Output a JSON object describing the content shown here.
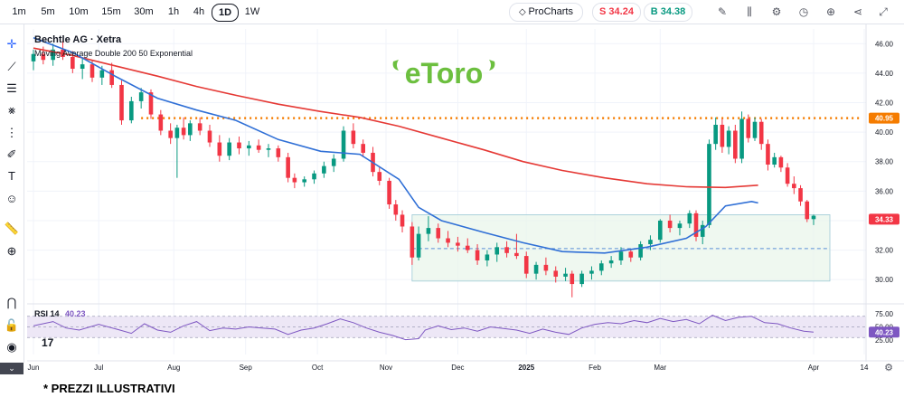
{
  "toolbar_top": {
    "timeframes": [
      "1m",
      "5m",
      "10m",
      "15m",
      "30m",
      "1h",
      "4h",
      "1D",
      "1W"
    ],
    "active_timeframe": "1D",
    "prochart_label": "ProCharts",
    "sell_label": "S 34.24",
    "buy_label": "B 34.38",
    "icons": [
      "pencil-icon",
      "bars-icon",
      "gear-icon",
      "history-icon",
      "plus-circle-icon",
      "share-icon",
      "expand-icon"
    ]
  },
  "left_tools": [
    "crosshair-icon",
    "trend-line-icon",
    "horizontal-lines-icon",
    "pattern-icon",
    "fib-icon",
    "brush-icon",
    "text-icon",
    "emoji-icon",
    "ruler-icon",
    "zoom-icon",
    "magnet-icon",
    "lock-icon",
    "eye-icon"
  ],
  "colors": {
    "up": "#089981",
    "down": "#f23645",
    "ema200": "#e53935",
    "ema50": "#2f6fd6",
    "resistance": "#f57c00",
    "box_fill": "#e8f5e9",
    "box_border": "#9cc9d6",
    "rsi_line": "#7e57c2",
    "rsi_band": "#ede7f6",
    "logo": "#6cbf3f"
  },
  "logo_text": "eToro",
  "footnote": "* PREZZI ILLUSTRATIVI",
  "chart_data": {
    "type": "candlestick",
    "title": "Bechtle AG · Xetra",
    "subtitle": "Moving Average Double 200 50 Exponential",
    "x_labels": [
      "Jun",
      "Jul",
      "Aug",
      "Sep",
      "Oct",
      "Nov",
      "Dec",
      "2025",
      "Feb",
      "Mar",
      "Apr",
      "14"
    ],
    "y_ticks": [
      30.0,
      32.0,
      34.0,
      36.0,
      38.0,
      40.0,
      42.0,
      44.0,
      46.0
    ],
    "y_range": [
      28.6,
      47.0
    ],
    "resistance_level": 40.95,
    "last_price_label": "34.33",
    "resistance_label": "40.95",
    "consolidation_box": {
      "start": "Oct 28",
      "end": "Apr 14",
      "top": 34.4,
      "mid": 32.1,
      "bottom": 29.9
    },
    "ema200": [
      [
        0,
        45.7
      ],
      [
        12,
        45.2
      ],
      [
        25,
        44.5
      ],
      [
        38,
        43.8
      ],
      [
        50,
        43.1
      ],
      [
        62,
        42.5
      ],
      [
        75,
        41.9
      ],
      [
        88,
        41.4
      ],
      [
        100,
        41.0
      ],
      [
        112,
        40.4
      ],
      [
        125,
        39.6
      ],
      [
        138,
        38.8
      ],
      [
        150,
        38.0
      ],
      [
        162,
        37.4
      ],
      [
        175,
        36.9
      ],
      [
        188,
        36.5
      ],
      [
        200,
        36.3
      ],
      [
        212,
        36.25
      ],
      [
        222,
        36.4
      ]
    ],
    "ema50": [
      [
        0,
        46.4
      ],
      [
        12,
        45.4
      ],
      [
        25,
        43.8
      ],
      [
        38,
        42.3
      ],
      [
        50,
        41.5
      ],
      [
        62,
        40.8
      ],
      [
        75,
        39.5
      ],
      [
        88,
        38.7
      ],
      [
        100,
        38.5
      ],
      [
        112,
        36.8
      ],
      [
        118,
        34.9
      ],
      [
        125,
        34.0
      ],
      [
        138,
        33.2
      ],
      [
        150,
        32.5
      ],
      [
        162,
        31.9
      ],
      [
        175,
        31.8
      ],
      [
        188,
        32.2
      ],
      [
        200,
        32.8
      ],
      [
        206,
        33.6
      ],
      [
        212,
        35.0
      ],
      [
        220,
        35.3
      ],
      [
        222,
        35.2
      ]
    ],
    "candles": [
      [
        0,
        44.8,
        45.6,
        44.2,
        45.3
      ],
      [
        3,
        45.3,
        45.8,
        44.6,
        44.9
      ],
      [
        6,
        44.9,
        46.0,
        44.5,
        45.6
      ],
      [
        9,
        45.6,
        46.2,
        44.9,
        45.1
      ],
      [
        12,
        45.1,
        45.5,
        44.0,
        44.3
      ],
      [
        15,
        44.3,
        45.0,
        43.6,
        44.6
      ],
      [
        18,
        44.6,
        44.9,
        43.4,
        43.7
      ],
      [
        21,
        43.7,
        44.5,
        43.2,
        44.2
      ],
      [
        24,
        44.2,
        44.7,
        43.0,
        43.2
      ],
      [
        27,
        43.2,
        43.5,
        40.5,
        40.8
      ],
      [
        30,
        40.8,
        42.4,
        40.6,
        42.1
      ],
      [
        33,
        42.1,
        43.0,
        41.6,
        42.7
      ],
      [
        36,
        42.7,
        42.9,
        40.9,
        41.2
      ],
      [
        39,
        41.2,
        41.5,
        39.8,
        40.1
      ],
      [
        42,
        40.1,
        40.6,
        39.2,
        39.6
      ],
      [
        44,
        39.6,
        40.5,
        36.9,
        40.3
      ],
      [
        46,
        40.3,
        41.0,
        39.5,
        39.8
      ],
      [
        48,
        39.8,
        40.8,
        39.4,
        40.6
      ],
      [
        51,
        40.6,
        41.0,
        39.8,
        40.1
      ],
      [
        54,
        40.1,
        40.5,
        39.0,
        39.3
      ],
      [
        57,
        39.3,
        39.8,
        38.0,
        38.4
      ],
      [
        60,
        38.4,
        39.6,
        38.1,
        39.3
      ],
      [
        63,
        39.3,
        39.7,
        38.5,
        38.9
      ],
      [
        66,
        38.9,
        39.4,
        38.4,
        39.1
      ],
      [
        69,
        39.1,
        39.5,
        38.6,
        38.8
      ],
      [
        72,
        38.8,
        39.2,
        38.3,
        38.9
      ],
      [
        75,
        38.9,
        39.1,
        38.0,
        38.3
      ],
      [
        78,
        38.3,
        38.6,
        36.6,
        36.9
      ],
      [
        80,
        36.9,
        37.2,
        36.2,
        36.6
      ],
      [
        83,
        36.6,
        37.0,
        36.3,
        36.8
      ],
      [
        86,
        36.8,
        37.4,
        36.5,
        37.2
      ],
      [
        89,
        37.2,
        38.0,
        36.9,
        37.7
      ],
      [
        92,
        37.7,
        38.5,
        37.3,
        38.2
      ],
      [
        95,
        38.2,
        40.4,
        38.0,
        40.1
      ],
      [
        98,
        40.1,
        40.6,
        38.9,
        39.2
      ],
      [
        101,
        39.2,
        39.5,
        38.3,
        38.6
      ],
      [
        104,
        38.6,
        39.0,
        37.0,
        37.3
      ],
      [
        106,
        37.3,
        37.6,
        36.4,
        36.7
      ],
      [
        109,
        36.7,
        36.9,
        34.8,
        35.1
      ],
      [
        111,
        35.1,
        35.4,
        34.0,
        34.4
      ],
      [
        113,
        34.4,
        34.7,
        33.2,
        33.6
      ],
      [
        116,
        33.6,
        33.9,
        31.0,
        31.5
      ],
      [
        118,
        31.5,
        33.6,
        31.3,
        33.1
      ],
      [
        121,
        33.1,
        34.3,
        32.6,
        33.5
      ],
      [
        124,
        33.5,
        33.8,
        32.5,
        32.8
      ],
      [
        127,
        32.8,
        33.3,
        32.2,
        32.5
      ],
      [
        130,
        32.5,
        32.9,
        31.9,
        32.3
      ],
      [
        133,
        32.3,
        32.8,
        31.8,
        32.0
      ],
      [
        136,
        32.0,
        32.4,
        31.0,
        31.3
      ],
      [
        139,
        31.3,
        32.0,
        30.9,
        31.7
      ],
      [
        142,
        31.7,
        32.5,
        31.2,
        32.2
      ],
      [
        145,
        32.2,
        32.6,
        31.5,
        31.8
      ],
      [
        148,
        31.8,
        33.1,
        31.4,
        31.6
      ],
      [
        151,
        31.6,
        31.9,
        30.1,
        30.4
      ],
      [
        154,
        30.4,
        31.2,
        30.0,
        31.0
      ],
      [
        157,
        31.0,
        31.5,
        30.3,
        30.6
      ],
      [
        160,
        30.6,
        30.9,
        29.8,
        30.2
      ],
      [
        163,
        30.2,
        30.8,
        29.9,
        30.4
      ],
      [
        165,
        30.4,
        30.6,
        28.8,
        29.7
      ],
      [
        168,
        29.7,
        30.6,
        29.5,
        30.4
      ],
      [
        171,
        30.4,
        30.9,
        30.0,
        30.6
      ],
      [
        174,
        30.6,
        31.3,
        30.3,
        31.1
      ],
      [
        177,
        31.1,
        31.6,
        30.8,
        31.3
      ],
      [
        180,
        31.3,
        32.2,
        31.0,
        31.9
      ],
      [
        183,
        31.9,
        32.1,
        31.2,
        31.5
      ],
      [
        186,
        31.5,
        32.6,
        31.3,
        32.4
      ],
      [
        189,
        32.4,
        33.0,
        32.0,
        32.7
      ],
      [
        192,
        32.7,
        34.1,
        32.5,
        34.0
      ],
      [
        195,
        34.0,
        34.4,
        33.2,
        33.5
      ],
      [
        198,
        33.5,
        34.0,
        33.0,
        33.8
      ],
      [
        201,
        33.8,
        34.7,
        33.5,
        34.5
      ],
      [
        203,
        34.5,
        34.7,
        32.6,
        32.9
      ],
      [
        205,
        32.9,
        34.0,
        32.4,
        33.7
      ],
      [
        207,
        33.7,
        39.5,
        33.5,
        39.2
      ],
      [
        209,
        39.2,
        41.0,
        38.8,
        40.5
      ],
      [
        211,
        40.5,
        40.9,
        38.6,
        39.0
      ],
      [
        213,
        39.0,
        40.4,
        38.5,
        40.1
      ],
      [
        215,
        40.1,
        40.5,
        37.9,
        38.2
      ],
      [
        217,
        38.2,
        41.4,
        37.9,
        40.9
      ],
      [
        219,
        40.9,
        41.2,
        39.3,
        39.6
      ],
      [
        221,
        39.6,
        41.0,
        39.4,
        40.7
      ],
      [
        223,
        40.7,
        40.9,
        38.8,
        39.2
      ],
      [
        225,
        39.2,
        39.5,
        37.4,
        37.8
      ],
      [
        227,
        37.8,
        38.6,
        37.6,
        38.3
      ],
      [
        229,
        38.3,
        38.4,
        37.3,
        37.6
      ],
      [
        231,
        37.6,
        37.9,
        36.3,
        36.5
      ],
      [
        233,
        36.5,
        37.0,
        35.8,
        36.2
      ],
      [
        235,
        36.2,
        36.4,
        35.0,
        35.3
      ],
      [
        237,
        35.3,
        35.4,
        33.9,
        34.1
      ],
      [
        239,
        34.1,
        34.4,
        33.7,
        34.33
      ]
    ],
    "rsi": {
      "label": "RSI 14",
      "value_label": "40.23",
      "y_ticks": [
        25.0,
        50.0,
        75.0
      ],
      "upper": 70,
      "lower": 30,
      "values": [
        [
          0,
          52
        ],
        [
          6,
          60
        ],
        [
          10,
          48
        ],
        [
          14,
          44
        ],
        [
          20,
          55
        ],
        [
          26,
          45
        ],
        [
          30,
          38
        ],
        [
          34,
          56
        ],
        [
          38,
          44
        ],
        [
          42,
          40
        ],
        [
          46,
          52
        ],
        [
          50,
          60
        ],
        [
          54,
          43
        ],
        [
          58,
          48
        ],
        [
          62,
          46
        ],
        [
          66,
          50
        ],
        [
          70,
          48
        ],
        [
          74,
          46
        ],
        [
          78,
          36
        ],
        [
          82,
          44
        ],
        [
          86,
          48
        ],
        [
          90,
          56
        ],
        [
          94,
          65
        ],
        [
          98,
          58
        ],
        [
          102,
          48
        ],
        [
          106,
          40
        ],
        [
          110,
          34
        ],
        [
          114,
          26
        ],
        [
          118,
          28
        ],
        [
          120,
          44
        ],
        [
          124,
          52
        ],
        [
          128,
          45
        ],
        [
          132,
          48
        ],
        [
          136,
          42
        ],
        [
          140,
          50
        ],
        [
          144,
          47
        ],
        [
          148,
          44
        ],
        [
          152,
          38
        ],
        [
          156,
          46
        ],
        [
          160,
          40
        ],
        [
          164,
          36
        ],
        [
          168,
          48
        ],
        [
          172,
          55
        ],
        [
          176,
          58
        ],
        [
          180,
          56
        ],
        [
          184,
          62
        ],
        [
          188,
          58
        ],
        [
          192,
          66
        ],
        [
          196,
          60
        ],
        [
          200,
          64
        ],
        [
          204,
          56
        ],
        [
          208,
          72
        ],
        [
          212,
          62
        ],
        [
          216,
          68
        ],
        [
          220,
          70
        ],
        [
          222,
          64
        ],
        [
          224,
          58
        ],
        [
          228,
          56
        ],
        [
          232,
          48
        ],
        [
          236,
          42
        ],
        [
          239,
          40.23
        ]
      ]
    }
  }
}
